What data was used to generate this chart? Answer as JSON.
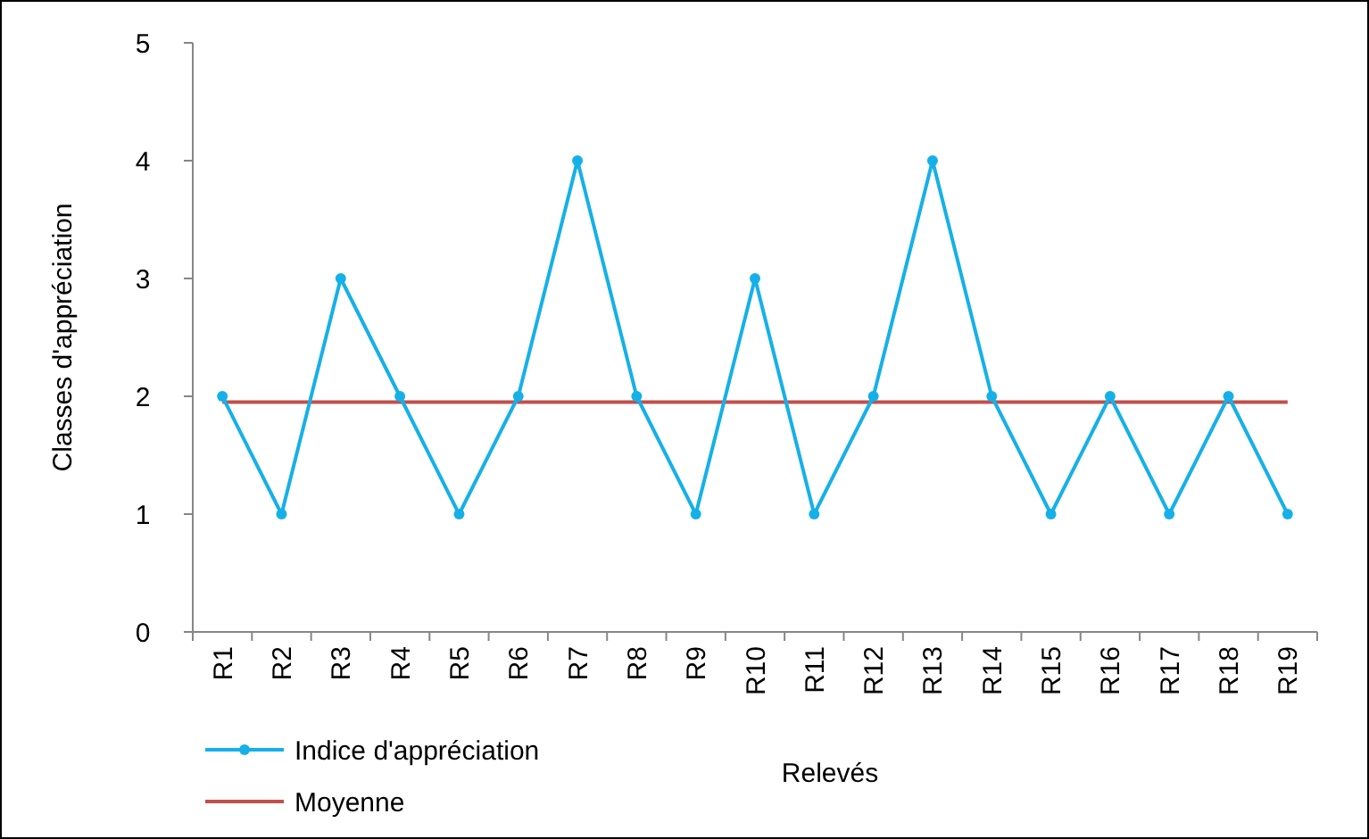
{
  "chart_data": {
    "type": "line",
    "xlabel": "Relevés",
    "ylabel": "Classes d'appréciation",
    "categories": [
      "R1",
      "R2",
      "R3",
      "R4",
      "R5",
      "R6",
      "R7",
      "R8",
      "R9",
      "R10",
      "R11",
      "R12",
      "R13",
      "R14",
      "R15",
      "R16",
      "R17",
      "R18",
      "R19"
    ],
    "series": [
      {
        "name": "Indice d'appréciation",
        "color": "#16b0e8",
        "values": [
          2,
          1,
          3,
          2,
          1,
          2,
          4,
          2,
          1,
          3,
          1,
          2,
          4,
          2,
          1,
          2,
          1,
          2,
          1
        ]
      }
    ],
    "ref_lines": [
      {
        "axis": "y",
        "value": 1.95,
        "label": "Moyenne",
        "color": "#c0504d"
      }
    ],
    "ylim": [
      0,
      5
    ],
    "yticks": [
      0,
      1,
      2,
      3,
      4,
      5
    ],
    "grid": false,
    "legend": "bottom left",
    "marker": "circle",
    "line_style": "solid"
  }
}
